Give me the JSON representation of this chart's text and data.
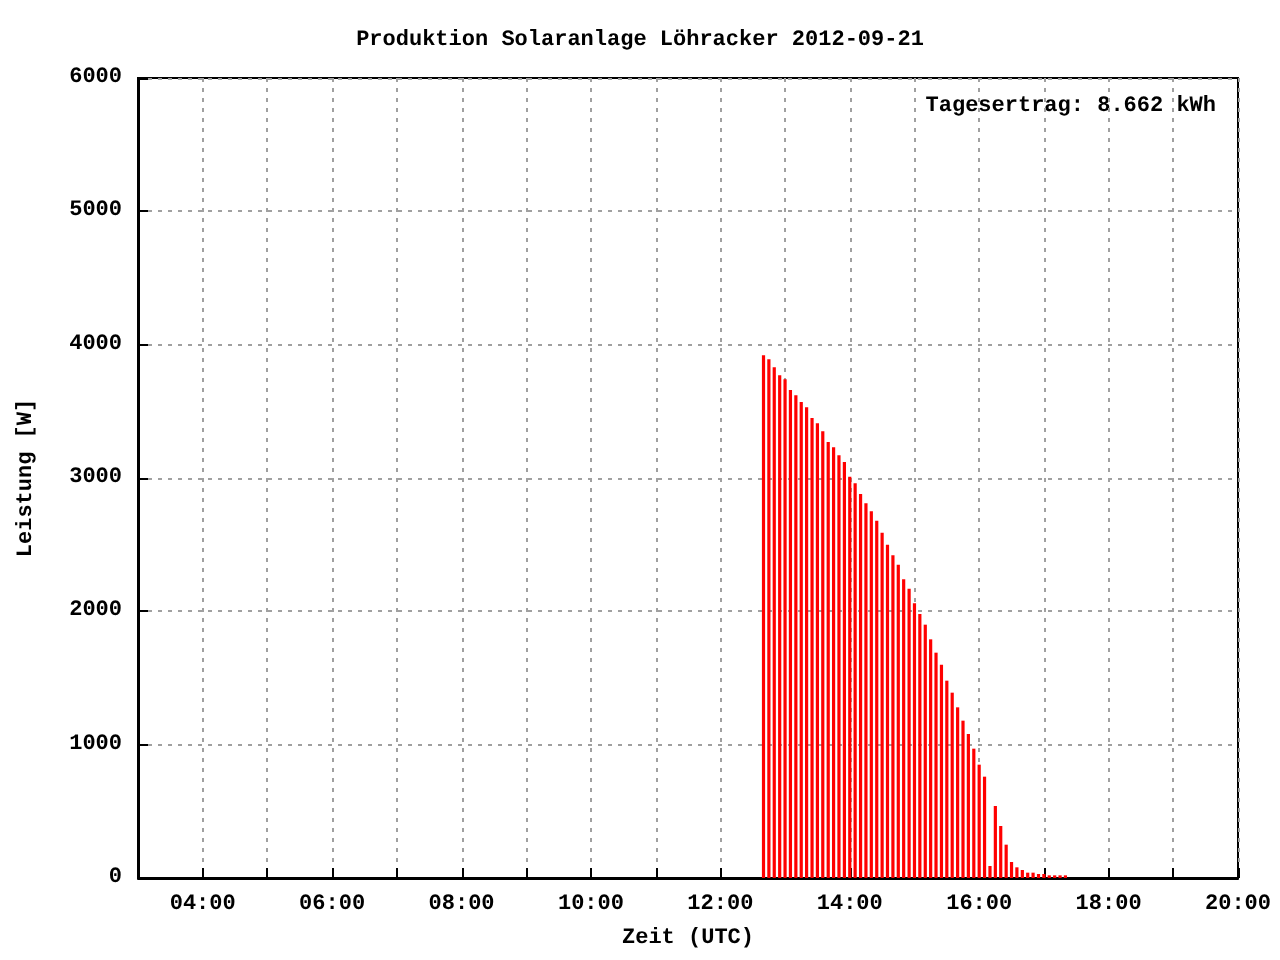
{
  "chart_data": {
    "type": "bar",
    "title": "Produktion Solaranlage Löhracker 2012-09-21",
    "xlabel": "Zeit (UTC)",
    "ylabel": "Leistung [W]",
    "annotations": [
      "Tagesertrag: 8.662 kWh"
    ],
    "x": [
      12.667,
      12.75,
      12.833,
      12.917,
      13,
      13.083,
      13.167,
      13.25,
      13.333,
      13.417,
      13.5,
      13.583,
      13.667,
      13.75,
      13.833,
      13.917,
      14,
      14.083,
      14.167,
      14.25,
      14.333,
      14.417,
      14.5,
      14.583,
      14.667,
      14.75,
      14.833,
      14.917,
      15,
      15.083,
      15.167,
      15.25,
      15.333,
      15.417,
      15.5,
      15.583,
      15.667,
      15.75,
      15.833,
      15.917,
      16,
      16.083,
      16.167,
      16.25,
      16.333,
      16.417,
      16.5,
      16.583,
      16.667,
      16.75,
      16.833,
      16.917,
      17,
      17.083,
      17.167,
      17.25,
      17.333
    ],
    "values": [
      3920,
      3890,
      3830,
      3770,
      3740,
      3660,
      3620,
      3570,
      3530,
      3450,
      3410,
      3350,
      3270,
      3230,
      3170,
      3120,
      3010,
      2960,
      2880,
      2810,
      2750,
      2680,
      2590,
      2500,
      2420,
      2350,
      2240,
      2170,
      2060,
      1980,
      1900,
      1790,
      1690,
      1600,
      1480,
      1390,
      1280,
      1180,
      1080,
      970,
      850,
      760,
      90,
      540,
      390,
      250,
      120,
      80,
      60,
      40,
      40,
      30,
      30,
      20,
      20,
      20,
      20
    ],
    "color": "#ff0000",
    "xlim": [
      3,
      20
    ],
    "xticks": [
      {
        "value": 4,
        "label": "04:00"
      },
      {
        "value": 5,
        "label": null
      },
      {
        "value": 6,
        "label": "06:00"
      },
      {
        "value": 7,
        "label": null
      },
      {
        "value": 8,
        "label": "08:00"
      },
      {
        "value": 9,
        "label": null
      },
      {
        "value": 10,
        "label": "10:00"
      },
      {
        "value": 11,
        "label": null
      },
      {
        "value": 12,
        "label": "12:00"
      },
      {
        "value": 13,
        "label": null
      },
      {
        "value": 14,
        "label": "14:00"
      },
      {
        "value": 15,
        "label": null
      },
      {
        "value": 16,
        "label": "16:00"
      },
      {
        "value": 17,
        "label": null
      },
      {
        "value": 18,
        "label": "18:00"
      },
      {
        "value": 19,
        "label": null
      },
      {
        "value": 20,
        "label": "20:00"
      }
    ],
    "ylim": [
      0,
      6000
    ],
    "yticks": [
      0,
      1000,
      2000,
      3000,
      4000,
      5000,
      6000
    ],
    "grid": true
  }
}
